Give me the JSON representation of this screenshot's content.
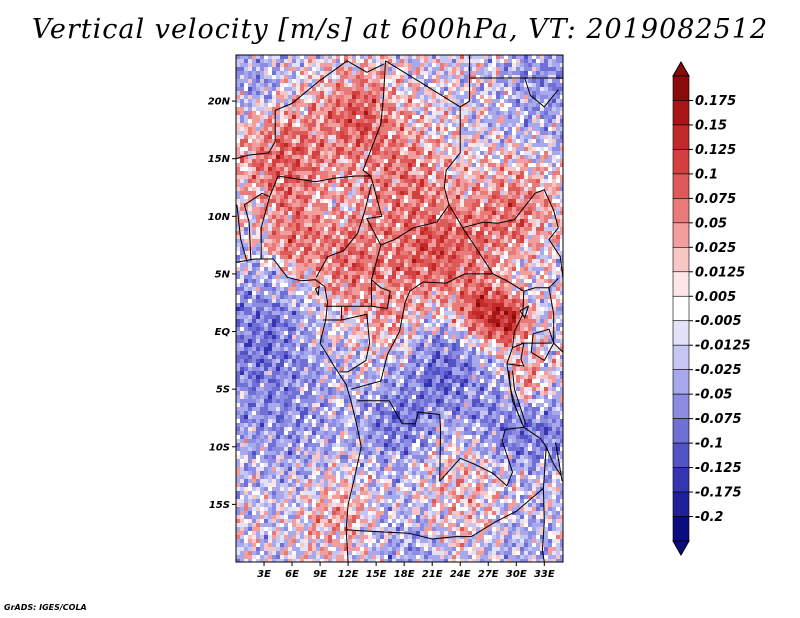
{
  "title": "Vertical velocity [m/s] at 600hPa, VT: 2019082512",
  "credit": "GrADS: IGES/COLA",
  "map": {
    "lon_range": [
      0,
      35
    ],
    "lat_range": [
      -20,
      24
    ],
    "lat_ticks": [
      {
        "value": 20,
        "label": "20N"
      },
      {
        "value": 15,
        "label": "15N"
      },
      {
        "value": 10,
        "label": "10N"
      },
      {
        "value": 5,
        "label": "5N"
      },
      {
        "value": 0,
        "label": "EQ"
      },
      {
        "value": -5,
        "label": "5S"
      },
      {
        "value": -10,
        "label": "10S"
      },
      {
        "value": -15,
        "label": "15S"
      }
    ],
    "lon_ticks": [
      {
        "value": 3,
        "label": "3E"
      },
      {
        "value": 6,
        "label": "6E"
      },
      {
        "value": 9,
        "label": "9E"
      },
      {
        "value": 12,
        "label": "12E"
      },
      {
        "value": 15,
        "label": "15E"
      },
      {
        "value": 18,
        "label": "18E"
      },
      {
        "value": 21,
        "label": "21E"
      },
      {
        "value": 24,
        "label": "24E"
      },
      {
        "value": 27,
        "label": "27E"
      },
      {
        "value": 30,
        "label": "30E"
      },
      {
        "value": 33,
        "label": "33E"
      }
    ]
  },
  "colorbar": {
    "labels": [
      "0.175",
      "0.15",
      "0.125",
      "0.1",
      "0.075",
      "0.05",
      "0.025",
      "0.0125",
      "0.005",
      "-0.005",
      "-0.0125",
      "-0.025",
      "-0.05",
      "-0.075",
      "-0.1",
      "-0.125",
      "-0.175",
      "-0.2"
    ],
    "colors": [
      "#8b0a0a",
      "#a81616",
      "#c22a2a",
      "#d24040",
      "#de5a5a",
      "#e87a7a",
      "#f29e9e",
      "#f9c6c6",
      "#fde6e6",
      "#ffffff",
      "#e2e2fb",
      "#c6c6f4",
      "#a8a8ec",
      "#8c8ce2",
      "#6f6fd6",
      "#5353c6",
      "#3535b2",
      "#20209a",
      "#0c0c80"
    ]
  },
  "field": {
    "lon_range": [
      0,
      35
    ],
    "lat_range": [
      -20,
      24
    ],
    "features": [
      {
        "lon": 5,
        "lat": 15,
        "r": 5,
        "a": 0.09
      },
      {
        "lon": 13,
        "lat": 19,
        "r": 4,
        "a": 0.09
      },
      {
        "lon": 18,
        "lat": 13,
        "r": 5,
        "a": 0.07
      },
      {
        "lon": 6,
        "lat": 8,
        "r": 3,
        "a": 0.07
      },
      {
        "lon": 12,
        "lat": 6,
        "r": 4,
        "a": 0.08
      },
      {
        "lon": 20,
        "lat": 6,
        "r": 4,
        "a": 0.08
      },
      {
        "lon": 25,
        "lat": 8,
        "r": 4,
        "a": 0.06
      },
      {
        "lon": 30,
        "lat": 11,
        "r": 4,
        "a": 0.07
      },
      {
        "lon": 26,
        "lat": 2,
        "r": 2.5,
        "a": 0.12
      },
      {
        "lon": 29,
        "lat": 1,
        "r": 2,
        "a": 0.13
      },
      {
        "lon": 31,
        "lat": -4,
        "r": 2,
        "a": 0.07
      },
      {
        "lon": 11,
        "lat": -16,
        "r": 4,
        "a": 0.05
      },
      {
        "lon": 24,
        "lat": -14,
        "r": 5,
        "a": 0.04
      },
      {
        "lon": 16,
        "lat": 1,
        "r": 3,
        "a": 0.04
      },
      {
        "lon": 2,
        "lat": 0,
        "r": 6,
        "a": -0.07
      },
      {
        "lon": 5,
        "lat": -8,
        "r": 6,
        "a": -0.04
      },
      {
        "lon": 22,
        "lat": -3,
        "r": 4,
        "a": -0.08
      },
      {
        "lon": 17,
        "lat": -8,
        "r": 4,
        "a": -0.07
      },
      {
        "lon": 28,
        "lat": -8,
        "r": 4,
        "a": -0.06
      },
      {
        "lon": 33,
        "lat": -9,
        "r": 3,
        "a": -0.06
      },
      {
        "lon": 33,
        "lat": 22,
        "r": 5,
        "a": -0.05
      },
      {
        "lon": 2,
        "lat": 22,
        "r": 3,
        "a": -0.05
      },
      {
        "lon": 18,
        "lat": -19,
        "r": 5,
        "a": -0.04
      },
      {
        "lon": 30,
        "lat": -18,
        "r": 4,
        "a": -0.03
      }
    ]
  }
}
